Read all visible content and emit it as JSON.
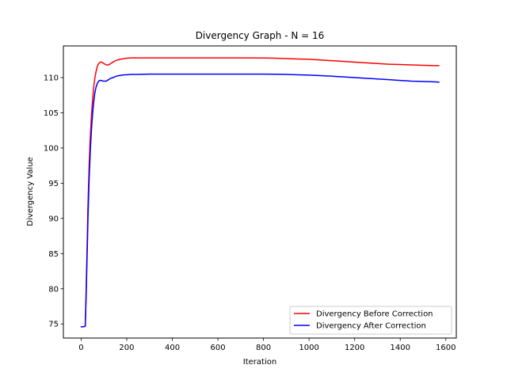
{
  "chart_data": {
    "type": "line",
    "title": "Divergency Graph - N =  16",
    "xlabel": "Iteration",
    "ylabel": "Divergency Value",
    "xlim": [
      -78,
      1646
    ],
    "ylim": [
      73,
      114.5
    ],
    "xticks": [
      0,
      200,
      400,
      600,
      800,
      1000,
      1200,
      1400,
      1600
    ],
    "yticks": [
      75,
      80,
      85,
      90,
      95,
      100,
      105,
      110
    ],
    "grid": false,
    "legend_position": "lower right",
    "series": [
      {
        "name": "Divergency Before Correction",
        "color": "#ff0000",
        "x": [
          0,
          10,
          18,
          22,
          26,
          30,
          35,
          40,
          45,
          50,
          55,
          60,
          65,
          70,
          75,
          80,
          85,
          90,
          95,
          100,
          105,
          110,
          115,
          120,
          125,
          130,
          140,
          150,
          160,
          170,
          180,
          190,
          200,
          220,
          250,
          300,
          400,
          500,
          600,
          700,
          800,
          850,
          900,
          950,
          1000,
          1050,
          1100,
          1150,
          1200,
          1250,
          1300,
          1350,
          1400,
          1450,
          1500,
          1550,
          1570
        ],
        "y": [
          74.6,
          74.6,
          74.7,
          80.0,
          86.0,
          92.0,
          97.5,
          101.5,
          104.5,
          106.8,
          108.6,
          109.9,
          110.8,
          111.5,
          111.9,
          112.1,
          112.2,
          112.2,
          112.1,
          112.0,
          111.9,
          111.8,
          111.8,
          111.8,
          111.9,
          112.0,
          112.2,
          112.4,
          112.5,
          112.6,
          112.65,
          112.7,
          112.75,
          112.8,
          112.8,
          112.8,
          112.8,
          112.8,
          112.8,
          112.8,
          112.78,
          112.75,
          112.7,
          112.65,
          112.6,
          112.5,
          112.4,
          112.3,
          112.2,
          112.1,
          112.0,
          111.9,
          111.85,
          111.8,
          111.75,
          111.7,
          111.7
        ]
      },
      {
        "name": "Divergency After Correction",
        "color": "#0000ff",
        "x": [
          0,
          10,
          18,
          22,
          26,
          30,
          35,
          40,
          45,
          50,
          55,
          60,
          65,
          70,
          75,
          80,
          85,
          90,
          95,
          100,
          105,
          110,
          115,
          120,
          125,
          130,
          140,
          150,
          160,
          170,
          180,
          190,
          200,
          220,
          250,
          300,
          400,
          500,
          600,
          700,
          800,
          850,
          900,
          950,
          1000,
          1050,
          1100,
          1150,
          1200,
          1250,
          1300,
          1350,
          1400,
          1450,
          1500,
          1550,
          1570
        ],
        "y": [
          74.6,
          74.6,
          74.7,
          79.0,
          84.5,
          90.0,
          95.5,
          99.5,
          102.5,
          104.8,
          106.5,
          107.8,
          108.6,
          109.1,
          109.4,
          109.6,
          109.6,
          109.6,
          109.5,
          109.5,
          109.5,
          109.5,
          109.6,
          109.7,
          109.8,
          109.9,
          110.0,
          110.15,
          110.25,
          110.3,
          110.35,
          110.4,
          110.4,
          110.45,
          110.45,
          110.5,
          110.5,
          110.5,
          110.5,
          110.5,
          110.5,
          110.48,
          110.45,
          110.4,
          110.35,
          110.28,
          110.2,
          110.1,
          110.0,
          109.9,
          109.8,
          109.7,
          109.6,
          109.5,
          109.45,
          109.4,
          109.35
        ]
      }
    ]
  }
}
